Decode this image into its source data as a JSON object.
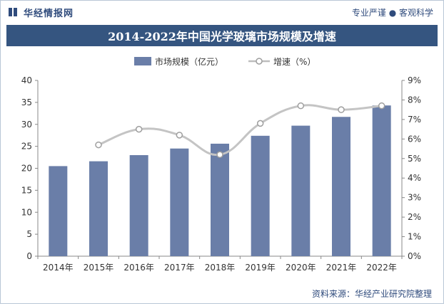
{
  "header": {
    "brand": "华经情报网",
    "slogan": "专业严谨 ● 客观科学"
  },
  "chart_data": {
    "type": "bar",
    "title": "2014-2022年中国光学玻璃市场规模及增速",
    "categories": [
      "2014年",
      "2015年",
      "2016年",
      "2017年",
      "2018年",
      "2019年",
      "2020年",
      "2021年",
      "2022年"
    ],
    "series": [
      {
        "name": "市场规模（亿元）",
        "type": "bar",
        "axis": "left",
        "values": [
          20.5,
          21.6,
          23.0,
          24.5,
          25.6,
          27.4,
          29.7,
          31.7,
          34.3
        ],
        "color": "#6a7ea8"
      },
      {
        "name": "增速（%）",
        "type": "line",
        "axis": "right",
        "values": [
          null,
          5.7,
          6.5,
          6.2,
          5.2,
          6.8,
          7.7,
          7.5,
          7.7
        ],
        "color": "#c4c4c4"
      }
    ],
    "left_axis": {
      "ylim": [
        0,
        40
      ],
      "ticks": [
        "0",
        "5",
        "10",
        "15",
        "20",
        "25",
        "30",
        "35",
        "40"
      ]
    },
    "right_axis": {
      "ylim": [
        0,
        9
      ],
      "ticks": [
        "0%",
        "1%",
        "2%",
        "3%",
        "4%",
        "5%",
        "6%",
        "7%",
        "8%",
        "9%"
      ]
    },
    "legend_position": "top-center",
    "grid": false
  },
  "footer": {
    "source": "资料来源：华经产业研究院整理"
  }
}
